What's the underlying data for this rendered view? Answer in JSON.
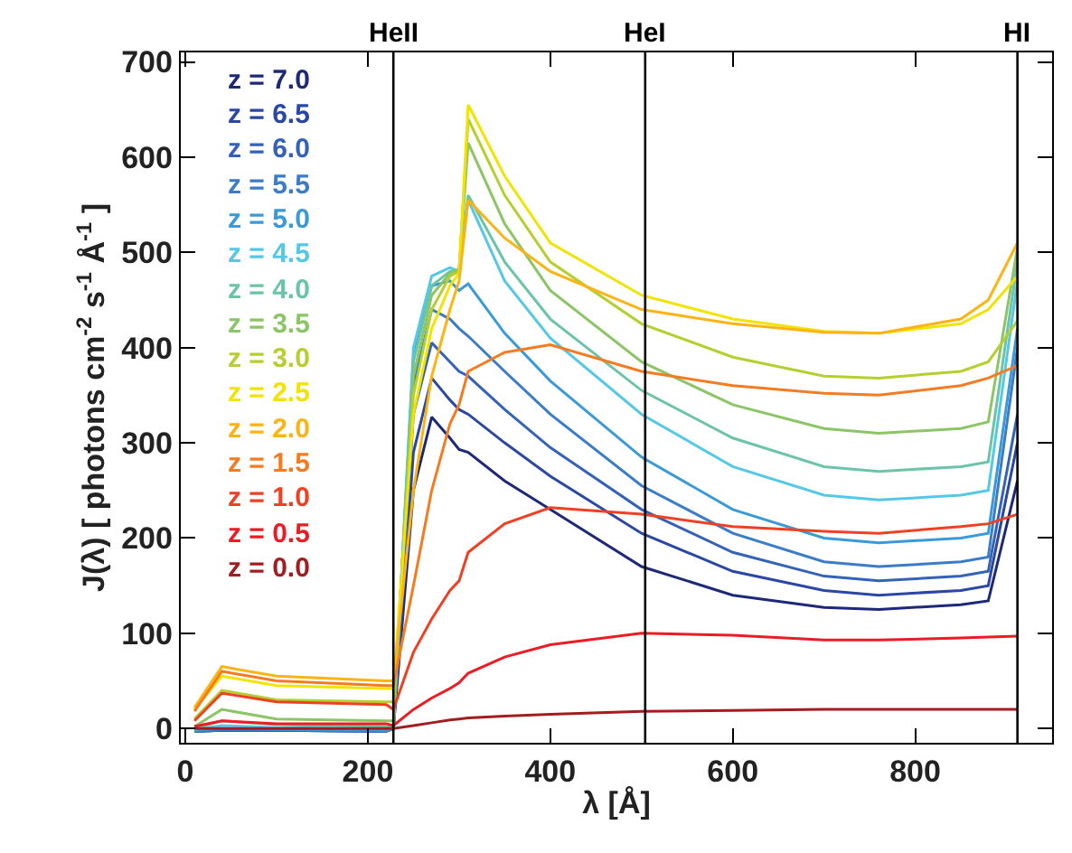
{
  "chart_data": {
    "type": "line",
    "xlabel": "λ [Å]",
    "ylabel": "J(λ) [ photons cm$^{-2}$ s$^{-1}$ Å$^{-1}$ ]",
    "x": [
      10,
      40,
      100,
      220,
      228,
      250,
      270,
      290,
      300,
      310,
      350,
      400,
      500,
      600,
      700,
      760,
      850,
      880,
      912
    ],
    "xlim": [
      -5,
      950
    ],
    "xticks": [
      0,
      200,
      400,
      600,
      800
    ],
    "ylim": [
      -15,
      710
    ],
    "yticks": [
      0,
      100,
      200,
      300,
      400,
      500,
      600,
      700
    ],
    "legend": "top left",
    "marker": "none",
    "line_style": "solid",
    "series": [
      {
        "name": "z = 7.0",
        "color": "#1e2878",
        "values": [
          -3,
          -2,
          -2,
          -3,
          0,
          250,
          327,
          305,
          293,
          290,
          260,
          230,
          170,
          140,
          127,
          125,
          130,
          134,
          260
        ]
      },
      {
        "name": "z = 6.5",
        "color": "#2a47a3",
        "values": [
          -3,
          -2,
          -2,
          -3,
          0,
          290,
          368,
          345,
          335,
          330,
          300,
          265,
          205,
          165,
          145,
          140,
          145,
          150,
          300
        ]
      },
      {
        "name": "z = 6.0",
        "color": "#3462b8",
        "values": [
          -3,
          -2,
          -2,
          -3,
          0,
          330,
          405,
          385,
          375,
          370,
          335,
          295,
          230,
          185,
          160,
          155,
          160,
          165,
          330
        ]
      },
      {
        "name": "z = 5.5",
        "color": "#3a7cc8",
        "values": [
          -3,
          -1,
          -1,
          -3,
          0,
          360,
          440,
          430,
          420,
          412,
          375,
          330,
          255,
          205,
          175,
          170,
          175,
          180,
          400
        ]
      },
      {
        "name": "z = 5.0",
        "color": "#3a9ad8",
        "values": [
          -2,
          0,
          -1,
          -2,
          0,
          390,
          465,
          470,
          460,
          467,
          415,
          365,
          285,
          230,
          200,
          195,
          200,
          205,
          420
        ]
      },
      {
        "name": "z = 4.5",
        "color": "#55c8e6",
        "values": [
          -1,
          3,
          1,
          0,
          0,
          400,
          475,
          484,
          480,
          555,
          470,
          410,
          330,
          275,
          245,
          240,
          245,
          250,
          470
        ]
      },
      {
        "name": "z = 4.0",
        "color": "#6cc4a8",
        "values": [
          0,
          8,
          4,
          2,
          2,
          385,
          465,
          480,
          482,
          560,
          490,
          430,
          355,
          305,
          275,
          270,
          275,
          280,
          490
        ]
      },
      {
        "name": "z = 3.5",
        "color": "#8cc565",
        "values": [
          2,
          20,
          10,
          8,
          8,
          370,
          455,
          478,
          482,
          615,
          530,
          460,
          385,
          340,
          315,
          310,
          315,
          322,
          505
        ]
      },
      {
        "name": "z = 3.0",
        "color": "#b5cf2e",
        "values": [
          10,
          40,
          30,
          28,
          28,
          350,
          440,
          475,
          480,
          640,
          560,
          490,
          425,
          390,
          370,
          368,
          375,
          385,
          428
        ]
      },
      {
        "name": "z = 2.5",
        "color": "#f2e300",
        "values": [
          20,
          55,
          45,
          42,
          42,
          330,
          420,
          465,
          478,
          655,
          580,
          510,
          455,
          430,
          417,
          415,
          425,
          440,
          475
        ]
      },
      {
        "name": "z = 2.0",
        "color": "#fbb414",
        "values": [
          22,
          65,
          55,
          50,
          50,
          250,
          370,
          440,
          470,
          555,
          515,
          480,
          440,
          425,
          416,
          415,
          430,
          450,
          510
        ]
      },
      {
        "name": "z = 1.5",
        "color": "#f47b20",
        "values": [
          18,
          60,
          50,
          45,
          45,
          150,
          250,
          320,
          340,
          375,
          395,
          403,
          375,
          360,
          352,
          350,
          360,
          368,
          381
        ]
      },
      {
        "name": "z = 1.0",
        "color": "#ef4023",
        "values": [
          8,
          37,
          28,
          25,
          20,
          80,
          115,
          145,
          155,
          185,
          215,
          232,
          225,
          212,
          207,
          205,
          212,
          215,
          225
        ]
      },
      {
        "name": "z = 0.5",
        "color": "#ec1c24",
        "values": [
          2,
          8,
          5,
          5,
          3,
          20,
          32,
          42,
          48,
          58,
          75,
          88,
          100,
          98,
          93,
          93,
          95,
          96,
          97
        ]
      },
      {
        "name": "z = 0.0",
        "color": "#a31d20",
        "values": [
          0,
          0,
          0,
          0,
          0,
          3,
          6,
          9,
          10,
          11,
          13,
          15,
          18,
          19,
          20,
          20,
          20,
          20,
          20
        ]
      }
    ],
    "ref_lines": [
      {
        "axis": "x",
        "value": 228,
        "label": "HeII",
        "color": "#000000"
      },
      {
        "axis": "x",
        "value": 504,
        "label": "HeI",
        "color": "#000000"
      },
      {
        "axis": "x",
        "value": 912,
        "label": "HI",
        "color": "#000000"
      }
    ]
  }
}
